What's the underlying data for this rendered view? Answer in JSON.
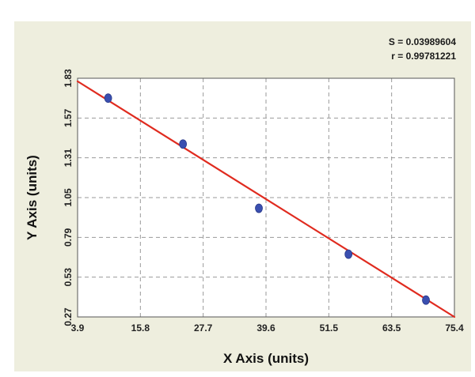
{
  "chart_data": {
    "type": "scatter",
    "xlabel": "X Axis (units)",
    "ylabel": "Y Axis (units)",
    "xlim": [
      3.9,
      75.4
    ],
    "ylim": [
      0.27,
      1.83
    ],
    "x_ticks": [
      "3.9",
      "15.8",
      "27.7",
      "39.6",
      "51.5",
      "63.5",
      "75.4"
    ],
    "y_ticks": [
      "0.27",
      "0.53",
      "0.79",
      "1.05",
      "1.31",
      "1.57",
      "1.83"
    ],
    "grid": true,
    "stats": {
      "s_label": "S = 0.03989604",
      "r_label": "r = 0.99781221"
    },
    "series": [
      {
        "values": [
          {
            "x": 9.7,
            "y": 1.7
          },
          {
            "x": 23.9,
            "y": 1.4
          },
          {
            "x": 38.3,
            "y": 0.98
          },
          {
            "x": 55.3,
            "y": 0.68
          },
          {
            "x": 70.0,
            "y": 0.38
          }
        ]
      }
    ],
    "fit_line": {
      "points": [
        {
          "x": 3.9,
          "y": 1.81
        },
        {
          "x": 75.4,
          "y": 0.27
        }
      ]
    },
    "colors": {
      "points": "#3a4fb0",
      "fit_line": "#e02b1f",
      "plot_background": "#ffffff",
      "panel_background": "#eeeede",
      "grid": "#9a9a9a"
    }
  }
}
